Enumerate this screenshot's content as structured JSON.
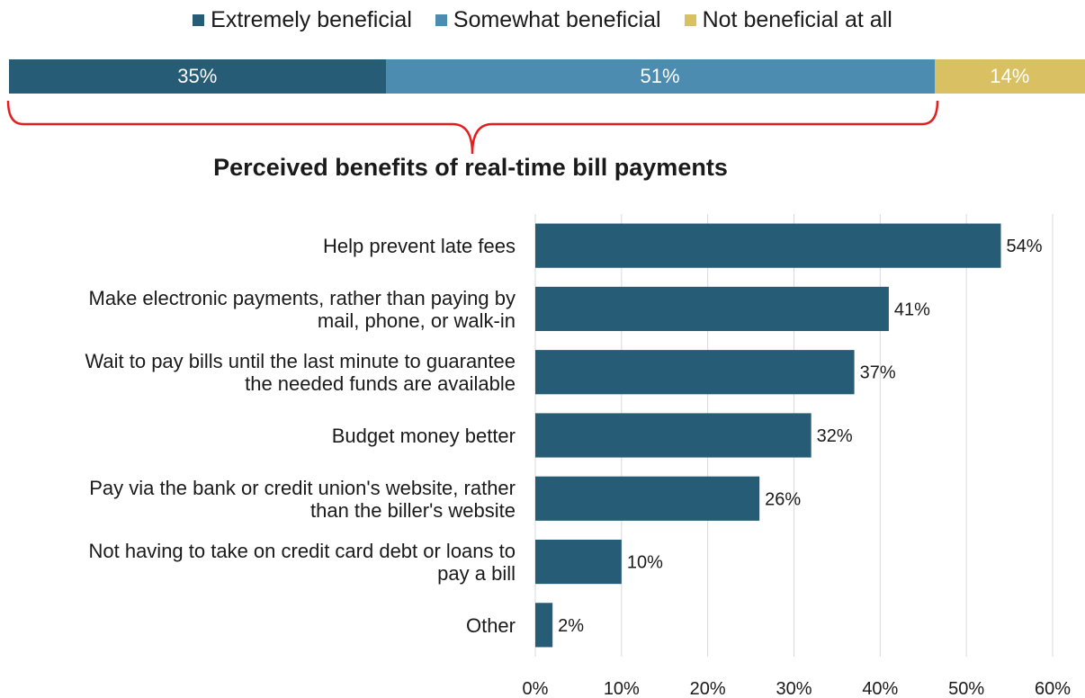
{
  "chart_data": [
    {
      "type": "stacked-bar",
      "orientation": "horizontal",
      "series": [
        {
          "name": "Extremely beneficial",
          "value": 35,
          "label": "35%",
          "color": "#265C76"
        },
        {
          "name": "Somewhat beneficial",
          "value": 51,
          "label": "51%",
          "color": "#4B8CB0"
        },
        {
          "name": "Not beneficial at all",
          "value": 14,
          "label": "14%",
          "color": "#D9C163"
        }
      ],
      "legend_position": "top"
    },
    {
      "type": "bar",
      "orientation": "horizontal",
      "title": "Perceived benefits of real-time bill payments",
      "bar_color": "#265C76",
      "categories": [
        [
          "Help prevent late fees"
        ],
        [
          "Make electronic payments, rather than paying by",
          "mail, phone, or walk-in"
        ],
        [
          "Wait to pay bills until the last minute to guarantee",
          "the needed funds are available"
        ],
        [
          "Budget money better"
        ],
        [
          "Pay via the bank or credit union's website, rather",
          "than the biller's website"
        ],
        [
          "Not having to take on credit card debt or loans to",
          "pay a bill"
        ],
        [
          "Other"
        ]
      ],
      "values": [
        54,
        41,
        37,
        32,
        26,
        10,
        2
      ],
      "value_labels": [
        "54%",
        "41%",
        "37%",
        "32%",
        "26%",
        "10%",
        "2%"
      ],
      "xlim": [
        0,
        60
      ],
      "xticks": [
        0,
        10,
        20,
        30,
        40,
        50,
        60
      ],
      "xtick_labels": [
        "0%",
        "10%",
        "20%",
        "30%",
        "40%",
        "50%",
        "60%"
      ],
      "grid": "vertical"
    }
  ]
}
